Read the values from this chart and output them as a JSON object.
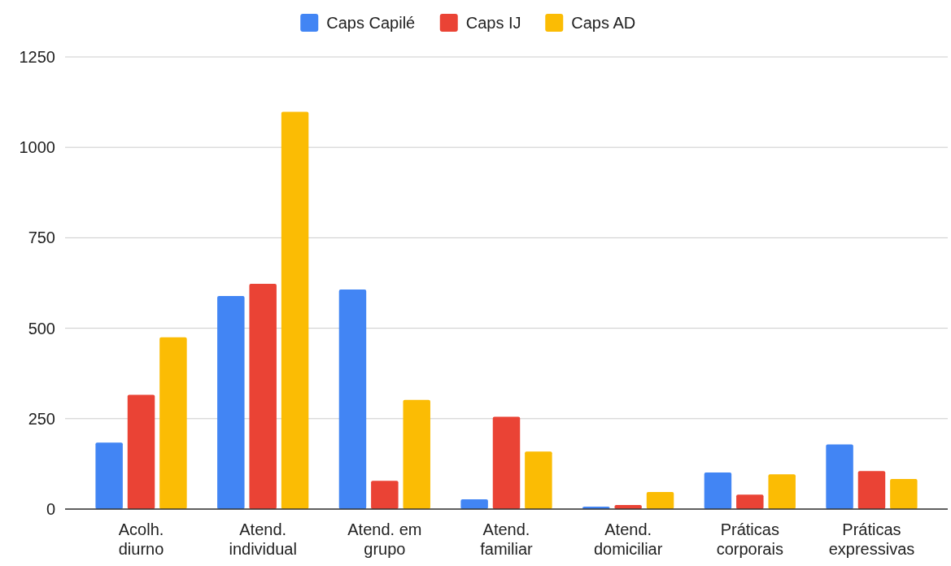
{
  "chart_data": {
    "type": "bar",
    "categories": [
      "Acolh. diurno",
      "Atend. individual",
      "Atend. em grupo",
      "Atend. familiar",
      "Atend. domiciliar",
      "Práticas corporais",
      "Práticas expressivas"
    ],
    "series": [
      {
        "name": "Caps Capilé",
        "color": "#4285f4",
        "values": [
          184,
          589,
          607,
          27,
          7,
          101,
          179
        ]
      },
      {
        "name": "Caps IJ",
        "color": "#ea4335",
        "values": [
          316,
          623,
          78,
          255,
          11,
          40,
          105
        ]
      },
      {
        "name": "Caps AD",
        "color": "#fbbc04",
        "values": [
          475,
          1098,
          302,
          159,
          47,
          96,
          83
        ]
      }
    ],
    "ylim": [
      0,
      1250
    ],
    "yticks": [
      0,
      250,
      500,
      750,
      1000,
      1250
    ],
    "grid": "y",
    "legend": "top"
  }
}
